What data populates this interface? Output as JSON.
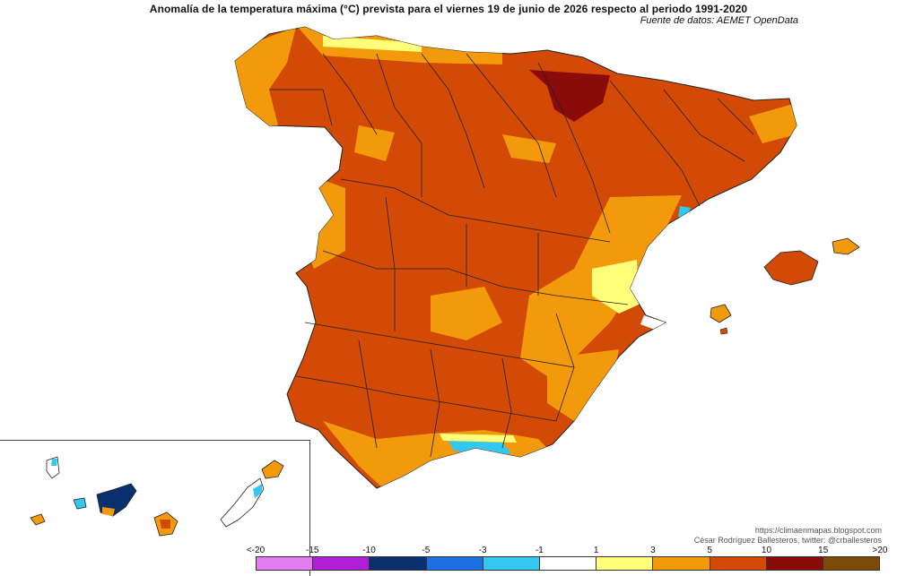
{
  "header": {
    "title": "Anomalía de la temperatura máxima (°C) prevista para el viernes 19 de junio de 2026 respecto al periodo 1991-2020",
    "source": "Fuente de datos: AEMET OpenData"
  },
  "credits": {
    "blog": "https://climaenmapas.blogspot.com",
    "author": "César Rodríguez Ballesteros, twitter: @crballesteros"
  },
  "legend": {
    "ticks": [
      "<-20",
      "-15",
      "-10",
      "-5",
      "-3",
      "-1",
      "1",
      "3",
      "5",
      "10",
      "15",
      ">20"
    ],
    "colors": [
      "#e27cf0",
      "#b01fd6",
      "#0a2f6e",
      "#1c6fe0",
      "#32c8ef",
      "#ffffff",
      "#ffff7a",
      "#f39a0c",
      "#d24a05",
      "#8b0b0b",
      "#7a4a06"
    ]
  },
  "map": {
    "palette": {
      "base": "#d24a05",
      "warm": "#f39a0c",
      "pale": "#ffff7a",
      "dark": "#8b0b0b",
      "cool": "#32c8ef",
      "cold": "#1c6fe0",
      "coldest": "#0a2f6e",
      "neutral": "#ffffff"
    }
  }
}
